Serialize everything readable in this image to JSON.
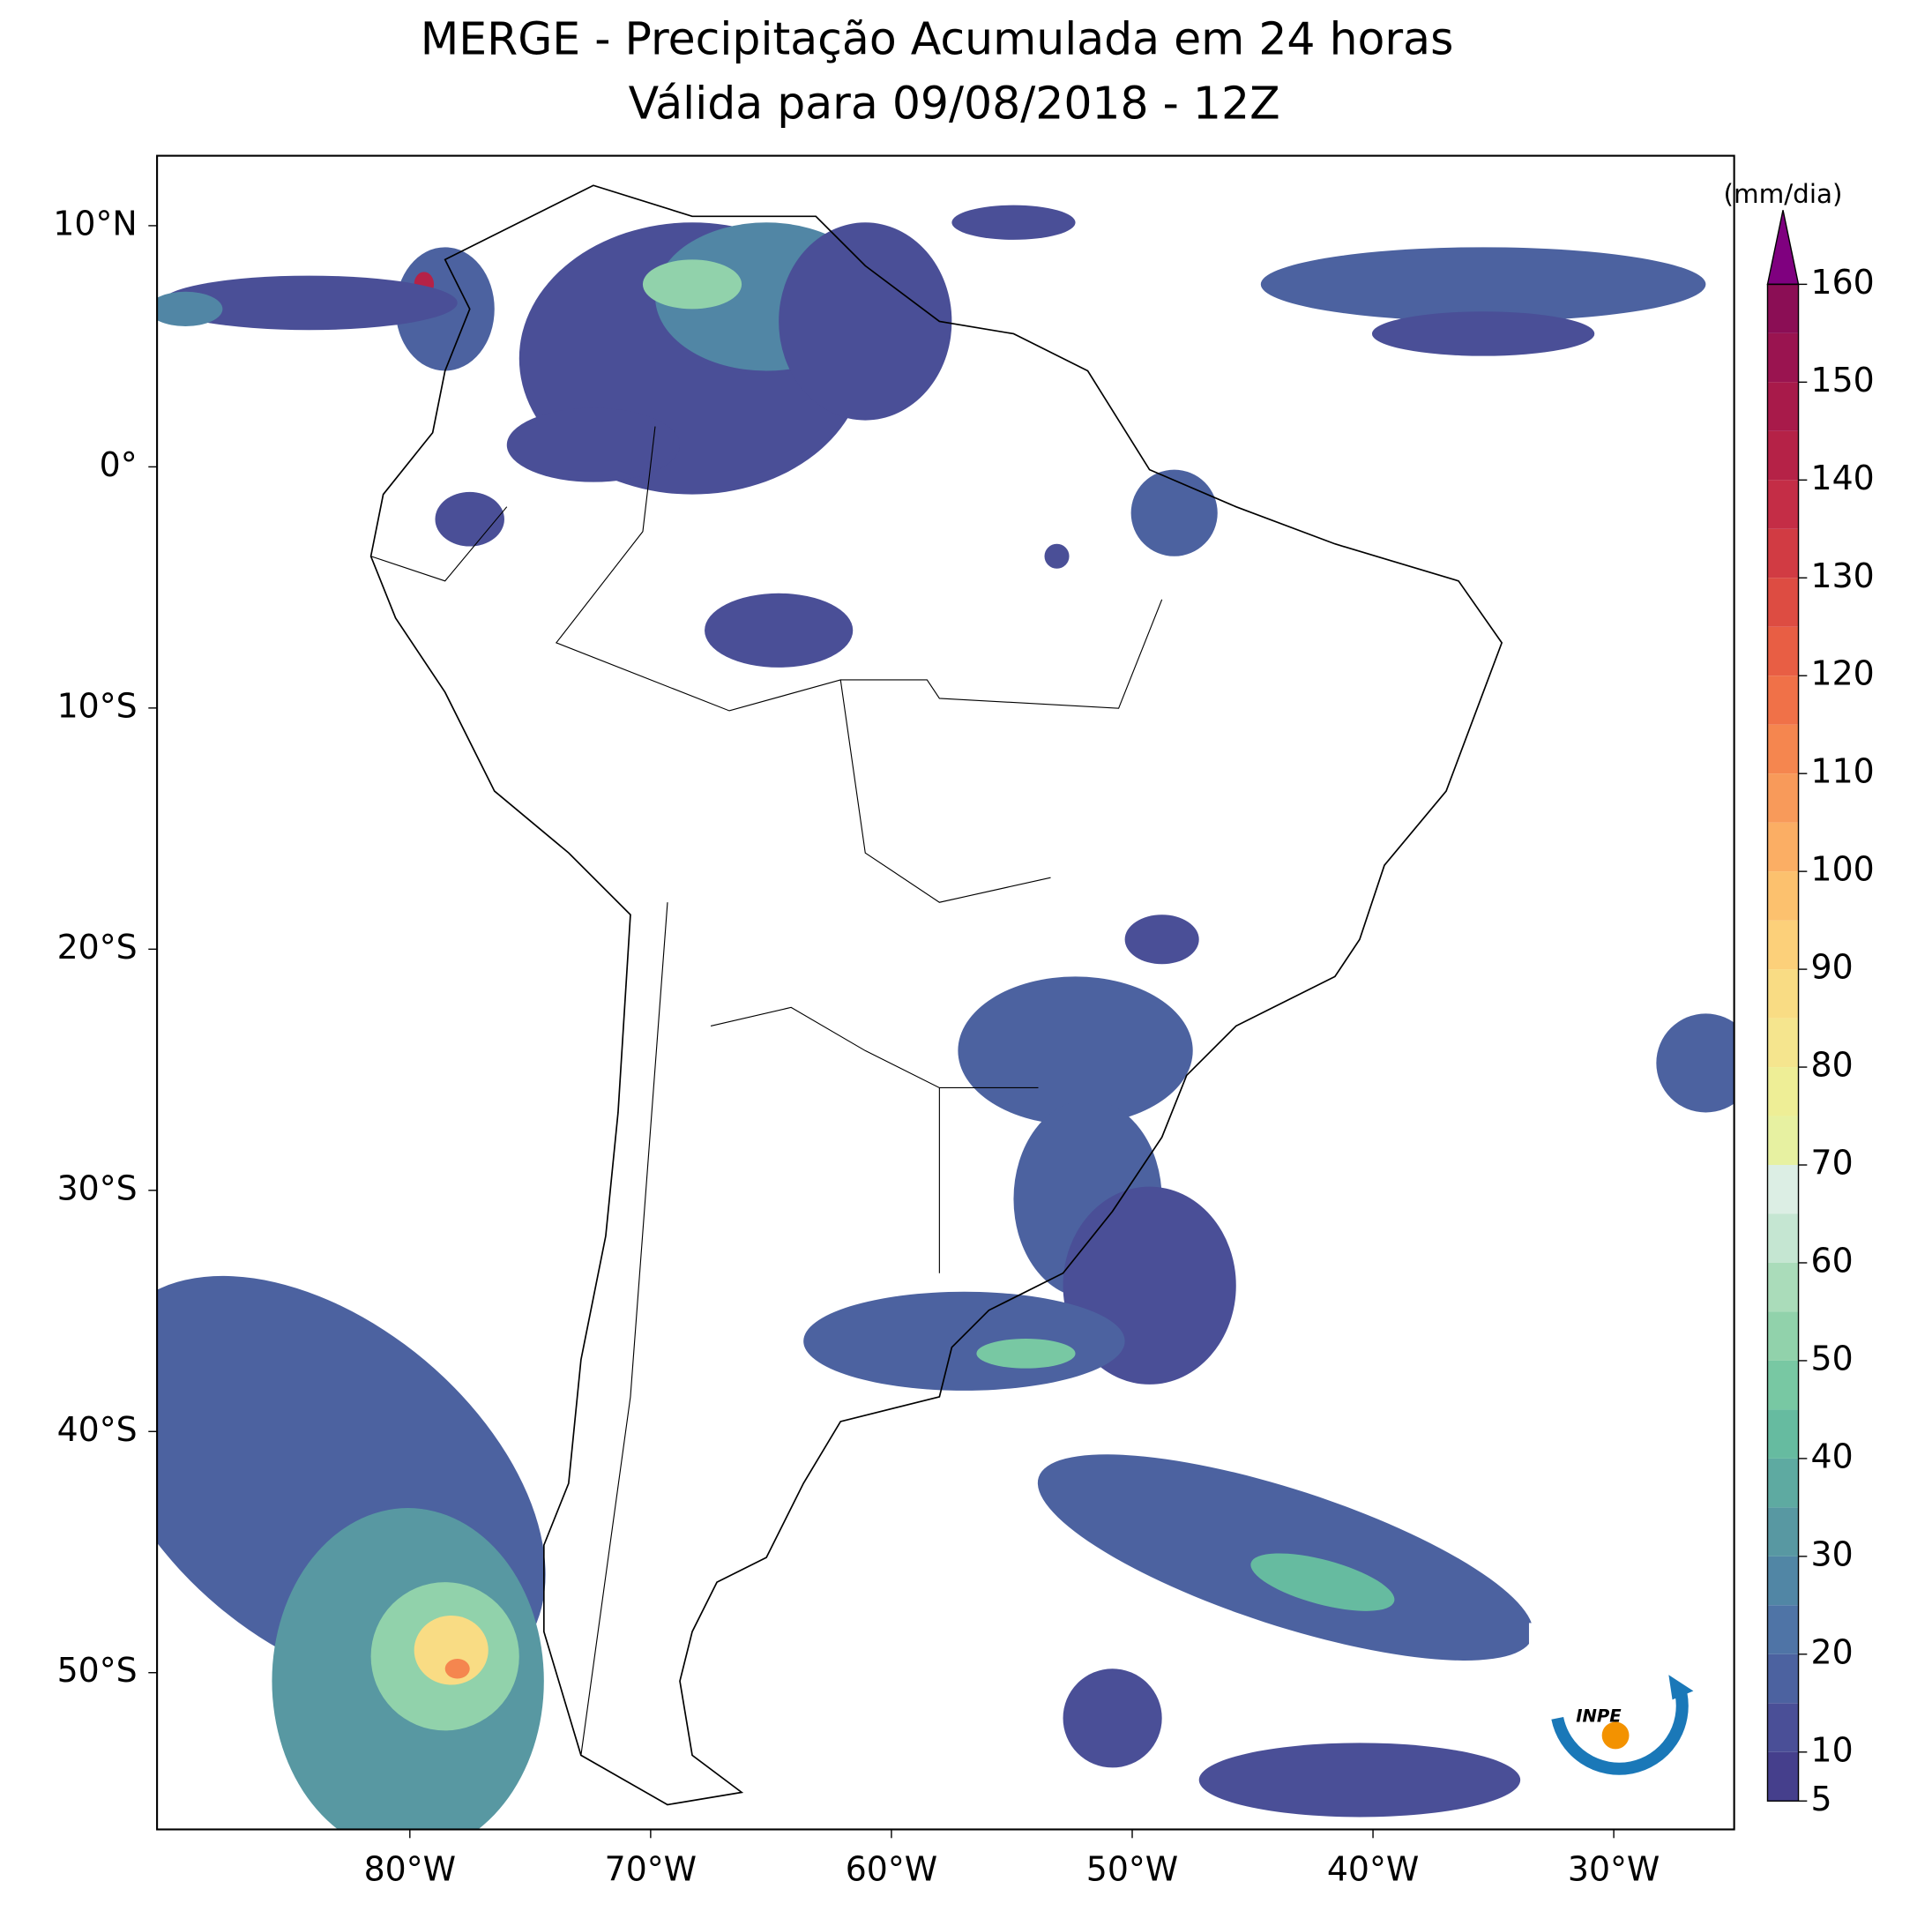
{
  "chart_data": {
    "type": "map",
    "title": "MERGE - Precipitação Acumulada em 24 horas",
    "subtitle": "Válida para 09/08/2018 - 12Z",
    "xlim": [
      -90.5,
      -25
    ],
    "ylim": [
      -56.5,
      12.9
    ],
    "xticks": [
      {
        "value": -80,
        "label": "80°W"
      },
      {
        "value": -70,
        "label": "70°W"
      },
      {
        "value": -60,
        "label": "60°W"
      },
      {
        "value": -50,
        "label": "50°W"
      },
      {
        "value": -40,
        "label": "40°W"
      },
      {
        "value": -30,
        "label": "30°W"
      }
    ],
    "yticks": [
      {
        "value": 10,
        "label": "10°N"
      },
      {
        "value": 0,
        "label": "0°"
      },
      {
        "value": -10,
        "label": "10°S"
      },
      {
        "value": -20,
        "label": "20°S"
      },
      {
        "value": -30,
        "label": "30°S"
      },
      {
        "value": -40,
        "label": "40°S"
      },
      {
        "value": -50,
        "label": "50°S"
      }
    ],
    "colorbar": {
      "label": "(mm/dia)",
      "lim": [
        5,
        160
      ],
      "ticks": [
        5,
        10,
        20,
        30,
        40,
        50,
        60,
        70,
        80,
        90,
        100,
        110,
        120,
        130,
        140,
        150,
        160
      ],
      "levels": [
        5,
        10,
        15,
        20,
        25,
        30,
        35,
        40,
        45,
        50,
        55,
        60,
        65,
        70,
        75,
        80,
        85,
        90,
        95,
        100,
        105,
        110,
        115,
        120,
        125,
        130,
        135,
        140,
        145,
        150,
        155,
        160
      ],
      "colors": [
        "#453f8c",
        "#4a4f97",
        "#4c62a0",
        "#4f74a6",
        "#5186a5",
        "#5898a2",
        "#5eaaa1",
        "#66bba0",
        "#78c8a3",
        "#91d2ab",
        "#aadcba",
        "#c5e6d2",
        "#dceee4",
        "#e7f1a1",
        "#eeee96",
        "#f5e58e",
        "#f9dc84",
        "#fcd07a",
        "#fcc16e",
        "#fbae64",
        "#f89a5a",
        "#f5864f",
        "#f07148",
        "#e85e44",
        "#dd4c42",
        "#d13b43",
        "#c42d46",
        "#b52247",
        "#a81a4a",
        "#9a1450",
        "#8b0e55"
      ],
      "extend_color": "#7f007f"
    },
    "logo_text": "INPE"
  }
}
